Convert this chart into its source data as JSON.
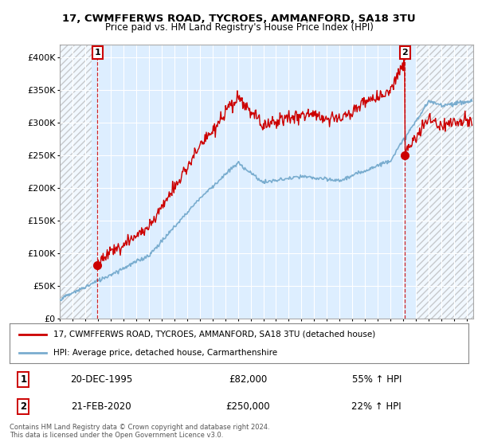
{
  "title": "17, CWMFFERWS ROAD, TYCROES, AMMANFORD, SA18 3TU",
  "subtitle": "Price paid vs. HM Land Registry's House Price Index (HPI)",
  "sale1_date": "20-DEC-1995",
  "sale1_price": 82000,
  "sale1_hpi": "55% ↑ HPI",
  "sale1_year": 1995.97,
  "sale2_date": "21-FEB-2020",
  "sale2_price": 250000,
  "sale2_hpi": "22% ↑ HPI",
  "sale2_year": 2020.13,
  "legend_line1": "17, CWMFFERWS ROAD, TYCROES, AMMANFORD, SA18 3TU (detached house)",
  "legend_line2": "HPI: Average price, detached house, Carmarthenshire",
  "footer": "Contains HM Land Registry data © Crown copyright and database right 2024.\nThis data is licensed under the Open Government Licence v3.0.",
  "red_color": "#cc0000",
  "blue_color": "#7aadcf",
  "plot_bg_color": "#ddeeff",
  "fig_bg_color": "#ffffff",
  "hatch_left_color": "#c8c8c8",
  "ylim": [
    0,
    420000
  ],
  "xlim_start": 1993.0,
  "xlim_end": 2025.5
}
